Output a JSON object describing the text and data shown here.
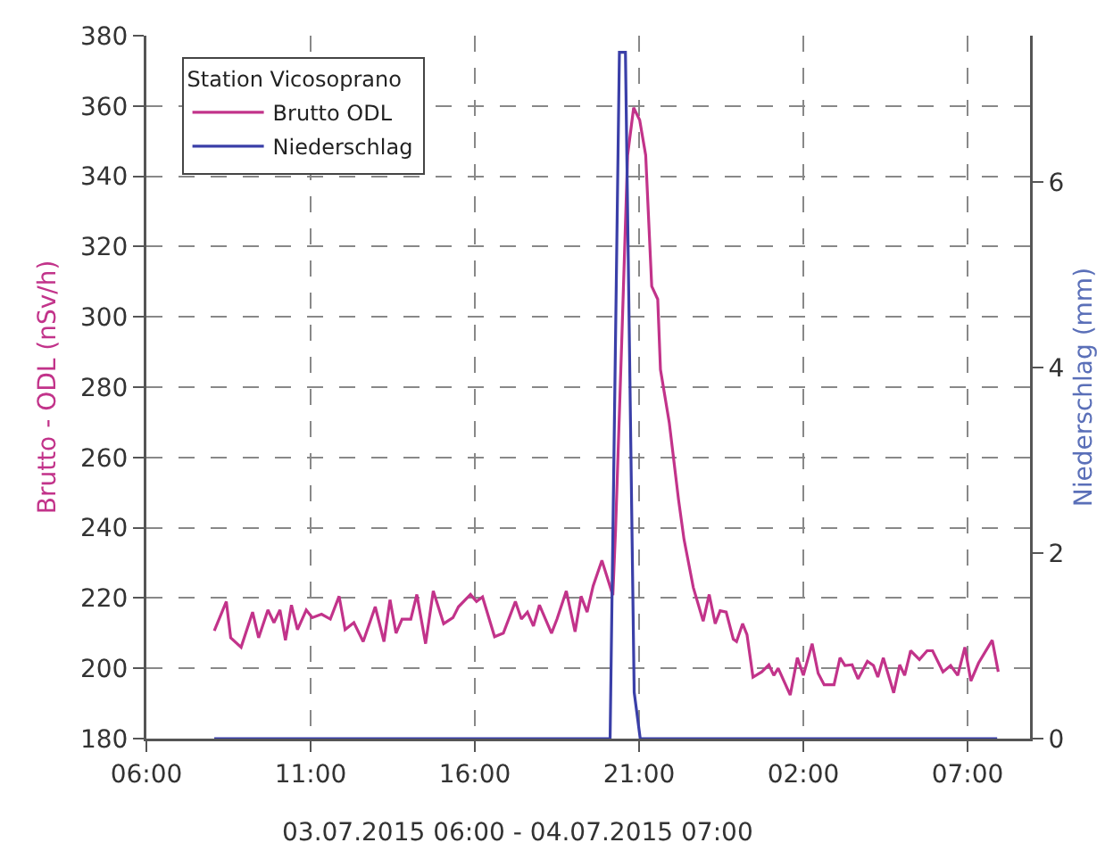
{
  "chart_data": {
    "type": "line",
    "xlabel": "03.07.2015 06:00 - 04.07.2015 07:00",
    "ylabel": "Brutto - ODL (nSv/h)",
    "y2label": "Niederschlag (mm)",
    "legend_title": "Station Vicosoprano",
    "legend": "top left",
    "grid": true,
    "marker": "none",
    "line_style": "solid",
    "xlim": [
      "2015-07-03T06:00",
      "2015-07-04T08:54"
    ],
    "xticks": [
      {
        "value": "2015-07-03T06:00",
        "label": "06:00"
      },
      {
        "value": "2015-07-03T11:00",
        "label": "11:00"
      },
      {
        "value": "2015-07-03T16:00",
        "label": "16:00"
      },
      {
        "value": "2015-07-03T21:00",
        "label": "21:00"
      },
      {
        "value": "2015-07-04T02:00",
        "label": "02:00"
      },
      {
        "value": "2015-07-04T07:00",
        "label": "07:00"
      }
    ],
    "ylim": [
      180,
      380
    ],
    "yticks": [
      180,
      200,
      220,
      240,
      260,
      280,
      300,
      320,
      340,
      360,
      380
    ],
    "y2lim": [
      0,
      7.58
    ],
    "y2ticks": [
      0,
      2,
      4,
      6
    ],
    "series": [
      {
        "name": "Brutto ODL",
        "color": "#c2338a",
        "x": [
          "2015-07-03T08:04",
          "2015-07-03T08:26",
          "2015-07-03T08:34",
          "2015-07-03T08:53",
          "2015-07-03T09:14",
          "2015-07-03T09:25",
          "2015-07-03T09:42",
          "2015-07-03T09:53",
          "2015-07-03T10:04",
          "2015-07-03T10:14",
          "2015-07-03T10:25",
          "2015-07-03T10:36",
          "2015-07-03T10:52",
          "2015-07-03T11:03",
          "2015-07-03T11:20",
          "2015-07-03T11:36",
          "2015-07-03T11:52",
          "2015-07-03T12:03",
          "2015-07-03T12:19",
          "2015-07-03T12:36",
          "2015-07-03T12:58",
          "2015-07-03T13:14",
          "2015-07-03T13:25",
          "2015-07-03T13:36",
          "2015-07-03T13:47",
          "2015-07-03T14:03",
          "2015-07-03T14:14",
          "2015-07-03T14:30",
          "2015-07-03T14:44",
          "2015-07-03T15:03",
          "2015-07-03T15:20",
          "2015-07-03T15:30",
          "2015-07-03T15:52",
          "2015-07-03T16:03",
          "2015-07-03T16:14",
          "2015-07-03T16:36",
          "2015-07-03T16:52",
          "2015-07-03T17:14",
          "2015-07-03T17:25",
          "2015-07-03T17:36",
          "2015-07-03T17:47",
          "2015-07-03T17:58",
          "2015-07-03T18:20",
          "2015-07-03T18:30",
          "2015-07-03T18:47",
          "2015-07-03T19:03",
          "2015-07-03T19:14",
          "2015-07-03T19:25",
          "2015-07-03T19:36",
          "2015-07-03T19:52",
          "2015-07-03T20:12",
          "2015-07-03T20:17",
          "2015-07-03T20:28",
          "2015-07-03T20:39",
          "2015-07-03T20:50",
          "2015-07-03T21:01",
          "2015-07-03T21:12",
          "2015-07-03T21:23",
          "2015-07-03T21:34",
          "2015-07-03T21:39",
          "2015-07-03T21:55",
          "2015-07-03T22:12",
          "2015-07-03T22:22",
          "2015-07-03T22:39",
          "2015-07-03T22:57",
          "2015-07-03T23:08",
          "2015-07-03T23:19",
          "2015-07-03T23:28",
          "2015-07-03T23:39",
          "2015-07-03T23:52",
          "2015-07-03T23:58",
          "2015-07-04T00:09",
          "2015-07-04T00:17",
          "2015-07-04T00:28",
          "2015-07-04T00:44",
          "2015-07-04T00:57",
          "2015-07-04T01:06",
          "2015-07-04T01:14",
          "2015-07-04T01:36",
          "2015-07-04T01:49",
          "2015-07-04T02:00",
          "2015-07-04T02:16",
          "2015-07-04T02:27",
          "2015-07-04T02:38",
          "2015-07-04T02:56",
          "2015-07-04T03:07",
          "2015-07-04T03:16",
          "2015-07-04T03:29",
          "2015-07-04T03:40",
          "2015-07-04T03:57",
          "2015-07-04T04:08",
          "2015-07-04T04:16",
          "2015-07-04T04:26",
          "2015-07-04T04:45",
          "2015-07-04T04:56",
          "2015-07-04T05:05",
          "2015-07-04T05:16",
          "2015-07-04T05:32",
          "2015-07-04T05:46",
          "2015-07-04T05:56",
          "2015-07-04T06:15",
          "2015-07-04T06:29",
          "2015-07-04T06:42",
          "2015-07-04T06:55",
          "2015-07-04T07:06",
          "2015-07-04T07:20",
          "2015-07-04T07:45",
          "2015-07-04T07:56"
        ],
        "values": [
          210.7,
          219,
          208.7,
          206,
          216,
          208.7,
          216.6,
          213,
          216.6,
          208,
          218,
          211,
          216.6,
          214.4,
          215.4,
          214,
          220.5,
          211,
          213,
          207.6,
          217.5,
          207.6,
          219.5,
          210,
          214,
          214,
          221,
          207,
          222,
          212.7,
          214.4,
          217.5,
          221,
          219,
          220.3,
          209,
          210,
          219,
          214,
          216,
          212,
          218,
          210,
          214,
          222,
          210.4,
          220.5,
          216,
          223.4,
          230.7,
          220.8,
          239.4,
          291.8,
          346,
          359.5,
          356,
          346,
          308.7,
          305,
          285,
          270,
          248,
          236.7,
          223,
          213.4,
          221,
          212.7,
          216.4,
          216,
          208.3,
          207.6,
          212.7,
          209.6,
          197.5,
          199,
          201,
          198,
          200,
          192.4,
          203,
          198,
          207,
          198.6,
          195.3,
          195.3,
          203,
          200.8,
          201,
          197,
          202,
          200.8,
          197.5,
          203,
          193,
          201,
          198,
          205,
          202.5,
          205,
          205,
          199,
          200.8,
          198,
          206,
          196.4,
          201.5,
          208,
          199
        ]
      },
      {
        "name": "Niederschlag",
        "color": "#3a3fa8",
        "axis": "y2",
        "x": [
          "2015-07-03T08:04",
          "2015-07-03T20:07",
          "2015-07-03T20:24",
          "2015-07-03T20:35",
          "2015-07-03T20:51",
          "2015-07-03T21:02",
          "2015-07-04T07:54"
        ],
        "values": [
          0,
          0,
          7.4,
          7.4,
          0.5,
          0,
          0
        ]
      }
    ]
  }
}
